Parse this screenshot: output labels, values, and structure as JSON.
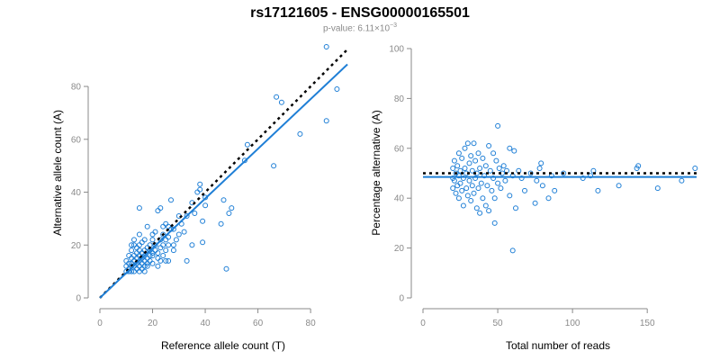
{
  "title": "rs17121605 - ENSG00000165501",
  "subtitle": {
    "prefix": "p-value: 6.11×10",
    "exponent": "−3"
  },
  "colors": {
    "points": "#1f7fd6",
    "fit_line": "#1f7fd6",
    "reference_line": "#000000",
    "axis": "#8a8a8a",
    "subtitle": "#8a8a8a"
  },
  "chart_data": [
    {
      "type": "scatter",
      "id": "left",
      "xlabel": "Reference allele count (T)",
      "ylabel": "Alternative allele count (A)",
      "xlim": [
        0,
        95
      ],
      "ylim": [
        0,
        95
      ],
      "xticks": [
        0,
        20,
        40,
        60,
        80
      ],
      "yticks": [
        0,
        20,
        40,
        60,
        80
      ],
      "grid": false,
      "legend": "none",
      "reference_line": {
        "style": "dotted",
        "slope": 1.0,
        "intercept": 0,
        "x": [
          0,
          94
        ]
      },
      "fit_line": {
        "style": "solid",
        "slope": 0.94,
        "intercept": 0,
        "x": [
          0,
          94
        ]
      },
      "points": [
        [
          10,
          10
        ],
        [
          10,
          12
        ],
        [
          10,
          14
        ],
        [
          11,
          10
        ],
        [
          11,
          11
        ],
        [
          11,
          13
        ],
        [
          11,
          16
        ],
        [
          12,
          10
        ],
        [
          12,
          12
        ],
        [
          12,
          13
        ],
        [
          12,
          15
        ],
        [
          12,
          18
        ],
        [
          12,
          20
        ],
        [
          13,
          10
        ],
        [
          13,
          12
        ],
        [
          13,
          14
        ],
        [
          13,
          16
        ],
        [
          13,
          20
        ],
        [
          13,
          22
        ],
        [
          14,
          11
        ],
        [
          14,
          13
        ],
        [
          14,
          15
        ],
        [
          14,
          17
        ],
        [
          14,
          19
        ],
        [
          15,
          10
        ],
        [
          15,
          12
        ],
        [
          15,
          14
        ],
        [
          15,
          16
        ],
        [
          15,
          18
        ],
        [
          15,
          20
        ],
        [
          15,
          24
        ],
        [
          15,
          34
        ],
        [
          16,
          11
        ],
        [
          16,
          13
        ],
        [
          16,
          15
        ],
        [
          16,
          17
        ],
        [
          16,
          21
        ],
        [
          17,
          10
        ],
        [
          17,
          12
        ],
        [
          17,
          14
        ],
        [
          17,
          16
        ],
        [
          17,
          18
        ],
        [
          17,
          22
        ],
        [
          18,
          12
        ],
        [
          18,
          13
        ],
        [
          18,
          15
        ],
        [
          18,
          19
        ],
        [
          18,
          27
        ],
        [
          19,
          14
        ],
        [
          19,
          16
        ],
        [
          19,
          18
        ],
        [
          19,
          20
        ],
        [
          20,
          13
        ],
        [
          20,
          16
        ],
        [
          20,
          17
        ],
        [
          20,
          22
        ],
        [
          20,
          24
        ],
        [
          21,
          18
        ],
        [
          21,
          20
        ],
        [
          21,
          25
        ],
        [
          22,
          12
        ],
        [
          22,
          15
        ],
        [
          22,
          17
        ],
        [
          22,
          33
        ],
        [
          23,
          14
        ],
        [
          23,
          19
        ],
        [
          23,
          22
        ],
        [
          23,
          34
        ],
        [
          24,
          16
        ],
        [
          24,
          20
        ],
        [
          24,
          24
        ],
        [
          24,
          27
        ],
        [
          25,
          14
        ],
        [
          25,
          18
        ],
        [
          25,
          22
        ],
        [
          25,
          28
        ],
        [
          26,
          14
        ],
        [
          26,
          20
        ],
        [
          26,
          23
        ],
        [
          26,
          27
        ],
        [
          27,
          26
        ],
        [
          27,
          37
        ],
        [
          28,
          20
        ],
        [
          28,
          26
        ],
        [
          28,
          18
        ],
        [
          29,
          22
        ],
        [
          30,
          24
        ],
        [
          30,
          31
        ],
        [
          31,
          28
        ],
        [
          32,
          25
        ],
        [
          33,
          14
        ],
        [
          33,
          31
        ],
        [
          35,
          20
        ],
        [
          35,
          36
        ],
        [
          36,
          32
        ],
        [
          37,
          40
        ],
        [
          38,
          41
        ],
        [
          38,
          43
        ],
        [
          39,
          21
        ],
        [
          39,
          29
        ],
        [
          40,
          35
        ],
        [
          40,
          38
        ],
        [
          46,
          28
        ],
        [
          47,
          37
        ],
        [
          48,
          11
        ],
        [
          49,
          32
        ],
        [
          50,
          34
        ],
        [
          55,
          52
        ],
        [
          56,
          58
        ],
        [
          66,
          50
        ],
        [
          67,
          76
        ],
        [
          69,
          74
        ],
        [
          76,
          62
        ],
        [
          86,
          67
        ],
        [
          86,
          95
        ],
        [
          90,
          79
        ]
      ]
    },
    {
      "type": "scatter",
      "id": "right",
      "xlabel": "Total number of reads",
      "ylabel": "Percentage alternative (A)",
      "xlim": [
        0,
        183
      ],
      "ylim": [
        0,
        100
      ],
      "xticks": [
        0,
        50,
        100,
        150
      ],
      "yticks": [
        0,
        20,
        40,
        60,
        80,
        100
      ],
      "grid": false,
      "legend": "none",
      "reference_line": {
        "style": "dotted",
        "y": 50
      },
      "fit_line": {
        "style": "solid",
        "y": 48.5
      },
      "points": [
        [
          20,
          44
        ],
        [
          20,
          48
        ],
        [
          20,
          52
        ],
        [
          21,
          47
        ],
        [
          21,
          55
        ],
        [
          22,
          42
        ],
        [
          22,
          50
        ],
        [
          23,
          45
        ],
        [
          23,
          53
        ],
        [
          24,
          40
        ],
        [
          24,
          49
        ],
        [
          24,
          58
        ],
        [
          25,
          46
        ],
        [
          25,
          51
        ],
        [
          26,
          43
        ],
        [
          26,
          56
        ],
        [
          27,
          37
        ],
        [
          27,
          48
        ],
        [
          28,
          52
        ],
        [
          28,
          60
        ],
        [
          29,
          44
        ],
        [
          29,
          50
        ],
        [
          30,
          41
        ],
        [
          30,
          62
        ],
        [
          31,
          47
        ],
        [
          31,
          54
        ],
        [
          32,
          39
        ],
        [
          32,
          57
        ],
        [
          33,
          45
        ],
        [
          33,
          51
        ],
        [
          34,
          62
        ],
        [
          34,
          42
        ],
        [
          35,
          48
        ],
        [
          35,
          55
        ],
        [
          36,
          36
        ],
        [
          36,
          50
        ],
        [
          37,
          44
        ],
        [
          37,
          58
        ],
        [
          38,
          34
        ],
        [
          38,
          52
        ],
        [
          39,
          46
        ],
        [
          40,
          40
        ],
        [
          40,
          56
        ],
        [
          41,
          49
        ],
        [
          42,
          37
        ],
        [
          42,
          53
        ],
        [
          43,
          45
        ],
        [
          44,
          61
        ],
        [
          44,
          35
        ],
        [
          45,
          51
        ],
        [
          46,
          43
        ],
        [
          47,
          48
        ],
        [
          47,
          58
        ],
        [
          48,
          40
        ],
        [
          48,
          30
        ],
        [
          49,
          55
        ],
        [
          50,
          46
        ],
        [
          50,
          69
        ],
        [
          51,
          52
        ],
        [
          52,
          44
        ],
        [
          53,
          50
        ],
        [
          54,
          53
        ],
        [
          55,
          47
        ],
        [
          56,
          51
        ],
        [
          58,
          60
        ],
        [
          58,
          41
        ],
        [
          60,
          49
        ],
        [
          60,
          19
        ],
        [
          61,
          59
        ],
        [
          62,
          36
        ],
        [
          64,
          51
        ],
        [
          66,
          48
        ],
        [
          68,
          43
        ],
        [
          72,
          50
        ],
        [
          75,
          38
        ],
        [
          76,
          47
        ],
        [
          78,
          52
        ],
        [
          79,
          54
        ],
        [
          80,
          45
        ],
        [
          84,
          40
        ],
        [
          86,
          49
        ],
        [
          88,
          43
        ],
        [
          94,
          50
        ],
        [
          107,
          48
        ],
        [
          112,
          49
        ],
        [
          114,
          51
        ],
        [
          117,
          43
        ],
        [
          131,
          45
        ],
        [
          143,
          52
        ],
        [
          144,
          53
        ],
        [
          157,
          44
        ],
        [
          173,
          47
        ],
        [
          182,
          52
        ]
      ]
    }
  ]
}
